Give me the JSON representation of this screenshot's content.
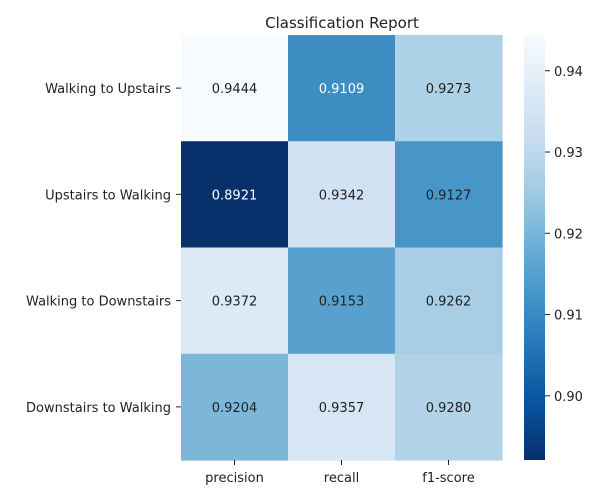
{
  "chart_data": {
    "type": "heatmap",
    "title": "Classification Report",
    "xlabel": "",
    "ylabel": "",
    "rows": [
      "Walking to Upstairs",
      "Upstairs to Walking",
      "Walking to Downstairs",
      "Downstairs to Walking"
    ],
    "columns": [
      "precision",
      "recall",
      "f1-score"
    ],
    "values": [
      [
        0.9444,
        0.9109,
        0.9273
      ],
      [
        0.8921,
        0.9342,
        0.9127
      ],
      [
        0.9372,
        0.9153,
        0.9262
      ],
      [
        0.9204,
        0.9357,
        0.928
      ]
    ],
    "value_labels": [
      [
        "0.9444",
        "0.9109",
        "0.9273"
      ],
      [
        "0.8921",
        "0.9342",
        "0.9127"
      ],
      [
        "0.9372",
        "0.9153",
        "0.9262"
      ],
      [
        "0.9204",
        "0.9357",
        "0.9280"
      ]
    ],
    "colormap": "Blues_r",
    "vmin": 0.8921,
    "vmax": 0.9444,
    "colorbar": {
      "ticks": [
        0.9,
        0.91,
        0.92,
        0.93,
        0.94
      ],
      "tick_labels": [
        "0.90",
        "0.91",
        "0.92",
        "0.93",
        "0.94"
      ]
    },
    "grid": false
  }
}
